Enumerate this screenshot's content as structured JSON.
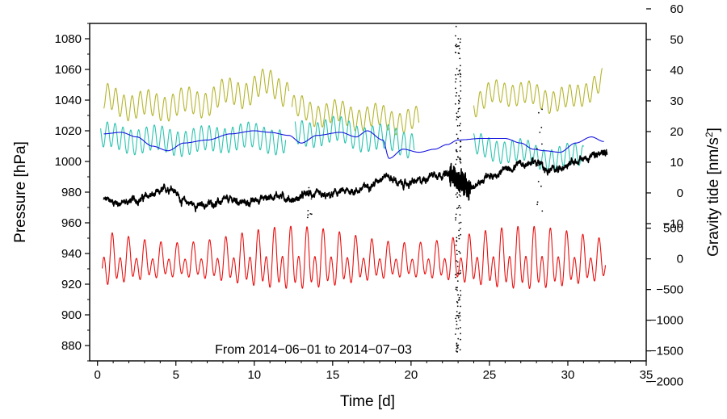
{
  "chart_data": {
    "type": "line",
    "caption": "From 2014−06−01 to 2014−07−03",
    "xlabel": "Time [d]",
    "ylabel_left": "Pressure [hPa]",
    "ylabel_right_base": "Gravity tide [nm/s",
    "ylabel_right_sup": "2",
    "ylabel_right_end": "]",
    "xlim": [
      -0.5,
      35
    ],
    "ylim_left": [
      870,
      1090
    ],
    "x_ticks": [
      0,
      5,
      10,
      15,
      20,
      25,
      30,
      35
    ],
    "x_tick_labels": [
      "0",
      "5",
      "10",
      "15",
      "20",
      "25",
      "30",
      "35"
    ],
    "y_left_ticks": [
      880,
      900,
      920,
      940,
      960,
      980,
      1000,
      1020,
      1040,
      1060,
      1080
    ],
    "y_left_tick_labels": [
      "880",
      "900",
      "920",
      "940",
      "960",
      "980",
      "1000",
      "1020",
      "1040",
      "1060",
      "1080"
    ],
    "right_axis_upper": {
      "unit_note": "mapped: value v drawn at pressure 979.5 + 2*(v - 0)",
      "ticks": [
        -10,
        0,
        10,
        20,
        30,
        40,
        50,
        60
      ],
      "tick_labels": [
        "−10",
        "0",
        "10",
        "20",
        "30",
        "40",
        "50",
        "60"
      ],
      "slope": 2.0,
      "offset": 979.5
    },
    "right_axis_lower": {
      "ticks": [
        -2000,
        -1500,
        -1000,
        -500,
        0,
        500
      ],
      "tick_labels": [
        "−2000",
        "−1500",
        "−1000",
        "−500",
        "0",
        "500"
      ],
      "slope": 0.04,
      "offset": 936.5
    },
    "series": [
      {
        "name": "pressure-variation-olive",
        "color": "#b5b52e",
        "kind": "oscillating",
        "segments": [
          {
            "x0": 0.4,
            "x1": 12.2,
            "base": [
              [
                0.4,
                1040
              ],
              [
                3,
                1036
              ],
              [
                6,
                1038
              ],
              [
                9,
                1045
              ],
              [
                11,
                1050
              ],
              [
                12.2,
                1046
              ]
            ],
            "amp": 8,
            "period": 0.52,
            "amp2": 3,
            "period2": 2.5
          },
          {
            "x0": 12.4,
            "x1": 20.5,
            "base": [
              [
                12.4,
                1034
              ],
              [
                14,
                1032
              ],
              [
                16,
                1030
              ],
              [
                18,
                1028
              ],
              [
                20.5,
                1026
              ]
            ],
            "amp": 7,
            "period": 0.52,
            "amp2": 3,
            "period2": 2.5
          },
          {
            "x0": 24.0,
            "x1": 32.2,
            "base": [
              [
                24,
                1038
              ],
              [
                26,
                1046
              ],
              [
                28,
                1042
              ],
              [
                30,
                1040
              ],
              [
                32.2,
                1052
              ]
            ],
            "amp": 7,
            "period": 0.52,
            "amp2": 3,
            "period2": 2.5
          }
        ]
      },
      {
        "name": "pressure-variation-cyan",
        "color": "#2cc4b0",
        "kind": "oscillating",
        "segments": [
          {
            "x0": 0.2,
            "x1": 12.0,
            "base": [
              [
                0.2,
                1016
              ],
              [
                3,
                1014
              ],
              [
                6,
                1013
              ],
              [
                9,
                1016
              ],
              [
                12,
                1014
              ]
            ],
            "amp": 8,
            "period": 0.5,
            "amp2": 2,
            "period2": 3
          },
          {
            "x0": 12.6,
            "x1": 20.2,
            "base": [
              [
                12.6,
                1018
              ],
              [
                15,
                1020
              ],
              [
                17,
                1016
              ],
              [
                20.2,
                1012
              ]
            ],
            "amp": 8,
            "period": 0.5,
            "amp2": 2,
            "period2": 3
          },
          {
            "x0": 24.0,
            "x1": 31.0,
            "base": [
              [
                24,
                1010
              ],
              [
                27,
                1006
              ],
              [
                29,
                1002
              ],
              [
                31,
                1004
              ]
            ],
            "amp": 7,
            "period": 0.5,
            "amp2": 2,
            "period2": 3
          }
        ]
      },
      {
        "name": "pressure-smooth-blue",
        "color": "#1515e0",
        "kind": "smooth",
        "points": [
          [
            0.4,
            1018
          ],
          [
            1.5,
            1019
          ],
          [
            2.5,
            1016
          ],
          [
            3.5,
            1010
          ],
          [
            4.5,
            1007
          ],
          [
            5.5,
            1012
          ],
          [
            7,
            1014
          ],
          [
            8.5,
            1018
          ],
          [
            10,
            1020
          ],
          [
            11,
            1019
          ],
          [
            12.2,
            1017
          ],
          [
            13,
            1012
          ],
          [
            14,
            1017
          ],
          [
            15.5,
            1019
          ],
          [
            16.5,
            1016
          ],
          [
            17.2,
            1020
          ],
          [
            18.2,
            1014
          ],
          [
            18.6,
            1002
          ],
          [
            19.5,
            1008
          ],
          [
            20.5,
            1006
          ],
          [
            21.5,
            1008
          ],
          [
            22.3,
            1011
          ],
          [
            23,
            1014
          ],
          [
            24.5,
            1015
          ],
          [
            26,
            1015
          ],
          [
            27,
            1012
          ],
          [
            27.8,
            1008
          ],
          [
            28.5,
            1007
          ],
          [
            29.5,
            1006
          ],
          [
            30.5,
            1012
          ],
          [
            31.5,
            1016
          ],
          [
            32.3,
            1013
          ]
        ]
      },
      {
        "name": "gravity-residual-black",
        "color": "#000000",
        "kind": "noisy",
        "points": [
          [
            0.4,
            975
          ],
          [
            1.5,
            973
          ],
          [
            2.5,
            975
          ],
          [
            3.5,
            978
          ],
          [
            4.7,
            983
          ],
          [
            5.5,
            974
          ],
          [
            6.5,
            971
          ],
          [
            7.5,
            973
          ],
          [
            8.5,
            975
          ],
          [
            9.5,
            973
          ],
          [
            10.5,
            976
          ],
          [
            11.5,
            978
          ],
          [
            12.5,
            975
          ],
          [
            13.5,
            979
          ],
          [
            14.5,
            977
          ],
          [
            15.5,
            980
          ],
          [
            16.5,
            981
          ],
          [
            17.5,
            985
          ],
          [
            18.3,
            991
          ],
          [
            19.5,
            985
          ],
          [
            20.5,
            987
          ],
          [
            21.5,
            992
          ],
          [
            22.5,
            991
          ],
          [
            23.2,
            986
          ],
          [
            24,
            984
          ],
          [
            25,
            990
          ],
          [
            26,
            994
          ],
          [
            27,
            998
          ],
          [
            28,
            1000
          ],
          [
            28.7,
            994
          ],
          [
            29.5,
            996
          ],
          [
            30.5,
            1000
          ],
          [
            31.5,
            1003
          ],
          [
            32.5,
            1006
          ]
        ],
        "noise": 1.4
      },
      {
        "name": "gravity-tide-red",
        "color": "#e81010",
        "kind": "tide",
        "x0": 0.3,
        "x1": 32.4,
        "mean": 934,
        "amp_diurnal": 10,
        "amp_semidiurnal": 14,
        "spring_mod": 0.45
      }
    ],
    "scatter": [
      {
        "name": "spike-23",
        "x": 23.0,
        "y_range": [
          874,
          1090
        ],
        "count": 160
      },
      {
        "name": "spike-13",
        "x": 13.5,
        "y_range": [
          962,
          990
        ],
        "count": 10
      },
      {
        "name": "spike-28",
        "x": 28.2,
        "y_range": [
          960,
          1035
        ],
        "count": 14
      }
    ]
  }
}
